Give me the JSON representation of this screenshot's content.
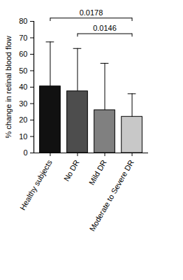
{
  "chart_data": {
    "type": "bar",
    "y_label": "% change in retinal blood flow",
    "categories": [
      "Healthy subjects",
      "No DR",
      "Mild DR",
      "Moderate to Severe DR"
    ],
    "values": [
      40.5,
      37.5,
      26,
      22
    ],
    "errors": [
      27,
      26,
      28.5,
      14
    ],
    "colors": [
      "#111111",
      "#4d4d4d",
      "#808080",
      "#c8c8c8"
    ],
    "ylim": [
      0,
      80
    ],
    "yticks": [
      0,
      10,
      20,
      30,
      40,
      50,
      60,
      70,
      80
    ],
    "grid": false,
    "annotations": [
      {
        "from": "Healthy subjects",
        "to": "Moderate to Severe DR",
        "y": 82,
        "text": "0.0178"
      },
      {
        "from": "No DR",
        "to": "Moderate to Severe DR",
        "y": 72.5,
        "text": "0.0146"
      }
    ]
  }
}
